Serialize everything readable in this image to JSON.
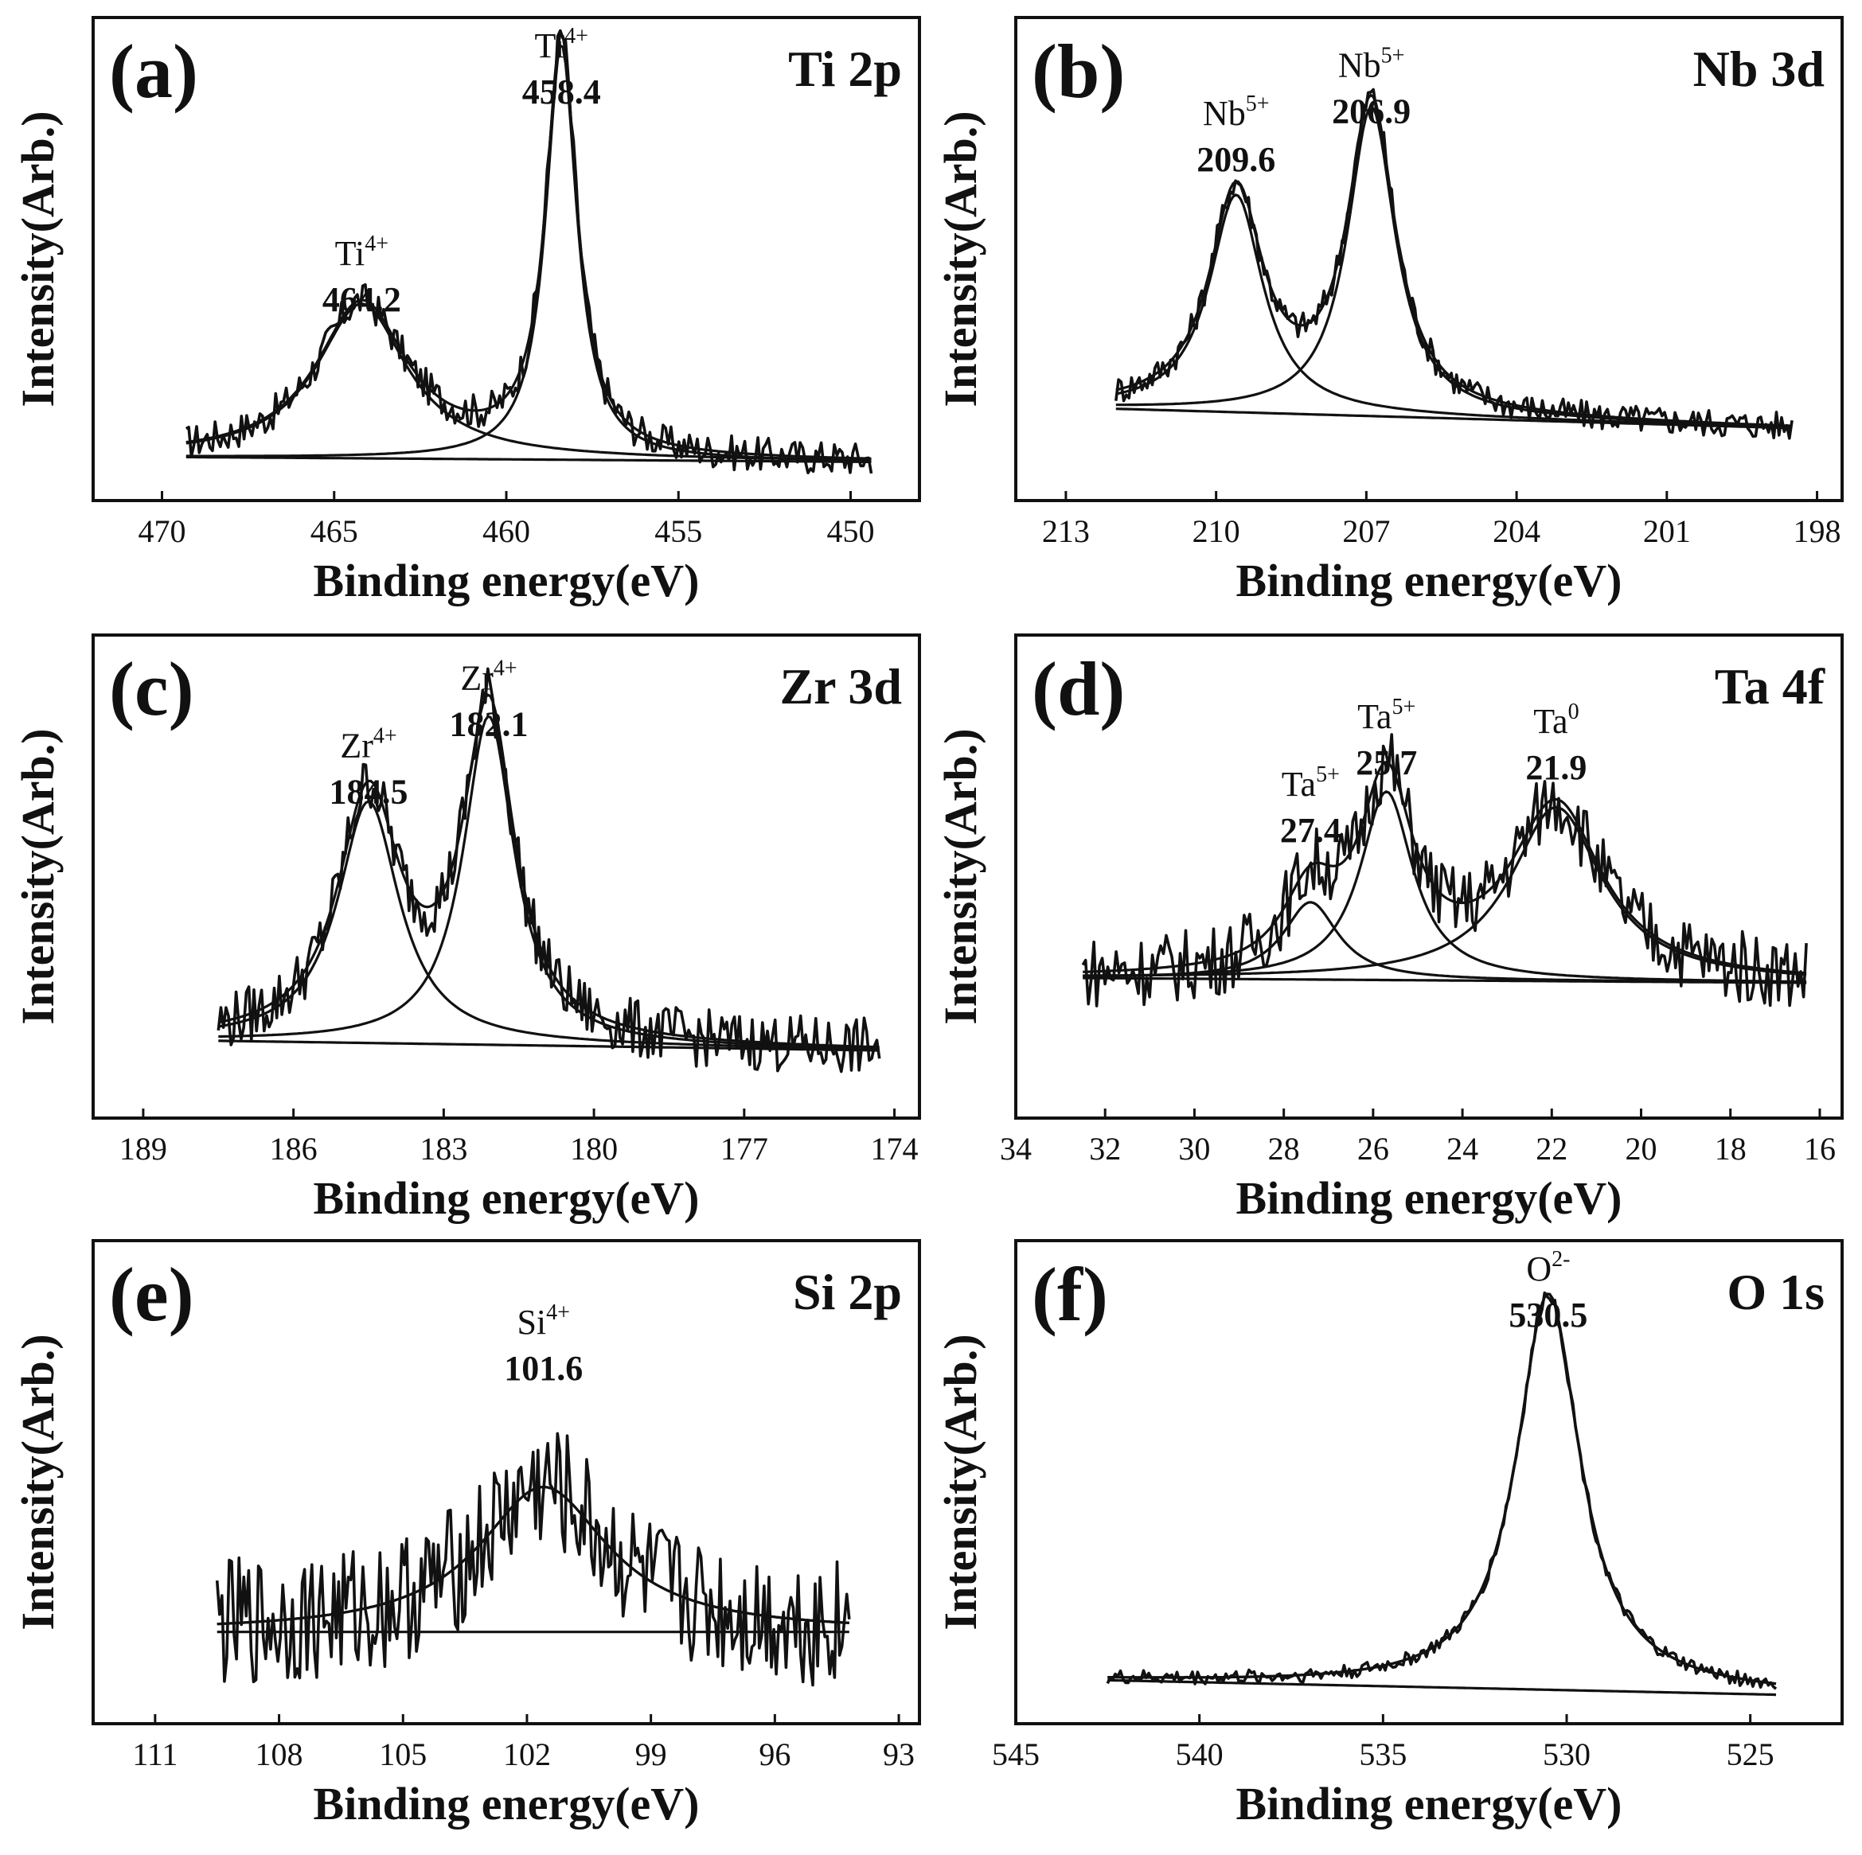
{
  "chart_data": [
    {
      "type": "line",
      "panel": "(a)",
      "title": "Ti 2p",
      "xlabel": "Binding energy(eV)",
      "ylabel": "Intensity(Arb.)",
      "xlim": [
        472,
        448
      ],
      "xticks": [
        470,
        465,
        460,
        455,
        450
      ],
      "data_range": [
        469.3,
        449.4
      ],
      "noise_scale": 0.012,
      "baseline": [
        0.09,
        0.08
      ],
      "peaks": [
        {
          "center": 464.2,
          "height": 0.32,
          "width": 1.6,
          "label_ion": "Ti",
          "label_sup": "4+",
          "label_value": "464.2",
          "label_top": 0.56
        },
        {
          "center": 458.4,
          "height": 0.86,
          "width": 0.55,
          "label_ion": "Ti",
          "label_sup": "4+",
          "label_value": "458.4",
          "label_top": 0.99
        }
      ]
    },
    {
      "type": "line",
      "panel": "(b)",
      "title": "Nb 3d",
      "xlabel": "Binding energy(eV)",
      "ylabel": "Intensity(Arb.)",
      "xlim": [
        214,
        197.5
      ],
      "xticks": [
        213,
        210,
        207,
        204,
        201,
        198
      ],
      "data_range": [
        212.0,
        198.5
      ],
      "noise_scale": 0.01,
      "baseline": [
        0.19,
        0.15
      ],
      "peaks": [
        {
          "center": 209.6,
          "height": 0.45,
          "width": 0.65,
          "label_ion": "Nb",
          "label_sup": "5+",
          "label_value": "209.6",
          "label_top": 0.85
        },
        {
          "center": 206.9,
          "height": 0.64,
          "width": 0.58,
          "label_ion": "Nb",
          "label_sup": "5+",
          "label_value": "206.9",
          "label_top": 0.95
        }
      ]
    },
    {
      "type": "line",
      "panel": "(c)",
      "title": "Zr 3d",
      "xlabel": "Binding energy(eV)",
      "ylabel": "Intensity(Arb.)",
      "xlim": [
        190,
        173.5
      ],
      "xticks": [
        189,
        186,
        183,
        180,
        177,
        174
      ],
      "data_range": [
        187.5,
        174.3
      ],
      "noise_scale": 0.02,
      "baseline": [
        0.16,
        0.14
      ],
      "peaks": [
        {
          "center": 184.5,
          "height": 0.5,
          "width": 0.75,
          "label_ion": "Zr",
          "label_sup": "4+",
          "label_value": "184.5",
          "label_top": 0.82
        },
        {
          "center": 182.1,
          "height": 0.68,
          "width": 0.62,
          "label_ion": "Zr",
          "label_sup": "4+",
          "label_value": "182.1",
          "label_top": 0.96
        }
      ]
    },
    {
      "type": "line",
      "panel": "(d)",
      "title": "Ta 4f",
      "xlabel": "Binding energy(eV)",
      "ylabel": "Intensity(Arb.)",
      "xlim": [
        34,
        15.5
      ],
      "xticks": [
        34,
        32,
        30,
        28,
        26,
        24,
        22,
        20,
        18,
        16
      ],
      "data_range": [
        32.5,
        16.3
      ],
      "noise_scale": 0.025,
      "baseline": [
        0.29,
        0.28
      ],
      "peaks": [
        {
          "center": 27.4,
          "height": 0.16,
          "width": 0.75,
          "label_ion": "Ta",
          "label_sup": "5+",
          "label_value": "27.4",
          "label_top": 0.74
        },
        {
          "center": 25.7,
          "height": 0.39,
          "width": 0.72,
          "label_ion": "Ta",
          "label_sup": "5+",
          "label_value": "25.7",
          "label_top": 0.88
        },
        {
          "center": 21.9,
          "height": 0.36,
          "width": 1.25,
          "label_ion": "Ta",
          "label_sup": "0",
          "label_value": "21.9",
          "label_top": 0.87
        }
      ]
    },
    {
      "type": "line",
      "panel": "(e)",
      "title": "Si 2p",
      "xlabel": "Binding energy(eV)",
      "ylabel": "Intensity(Arb.)",
      "xlim": [
        112.5,
        92.5
      ],
      "xticks": [
        111,
        108,
        105,
        102,
        99,
        96,
        93
      ],
      "data_range": [
        109.5,
        94.2
      ],
      "noise_scale": 0.045,
      "baseline": [
        0.19,
        0.19
      ],
      "peaks": [
        {
          "center": 101.6,
          "height": 0.3,
          "width": 1.9,
          "label_ion": "Si",
          "label_sup": "4+",
          "label_value": "101.6",
          "label_top": 0.88
        }
      ]
    },
    {
      "type": "line",
      "panel": "(f)",
      "title": "O 1s",
      "xlabel": "Binding energy(eV)",
      "ylabel": "Intensity(Arb.)",
      "xlim": [
        545,
        522.5
      ],
      "xticks": [
        545,
        540,
        535,
        530,
        525
      ],
      "data_range": [
        542.5,
        524.3
      ],
      "noise_scale": 0.005,
      "baseline": [
        0.09,
        0.06
      ],
      "peaks": [
        {
          "center": 530.5,
          "height": 0.82,
          "width": 1.05,
          "label_ion": "O",
          "label_sup": "2-",
          "label_value": "530.5",
          "label_top": 0.99
        }
      ]
    }
  ]
}
